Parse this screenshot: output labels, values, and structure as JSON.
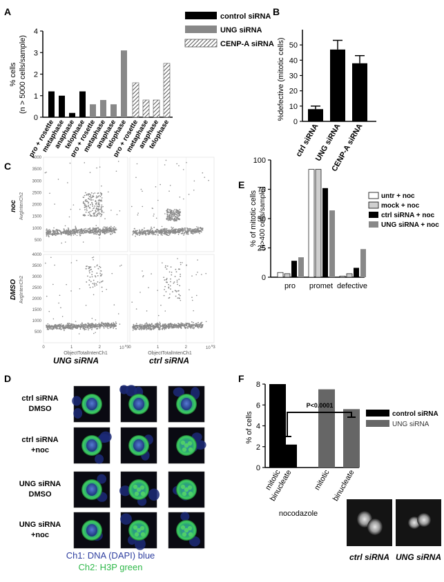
{
  "panels": {
    "A": {
      "letter": "A",
      "ylabel": "% cells",
      "ylabel2": "(n > 5000 cells/sample)",
      "y_ticks": [
        "0",
        "1",
        "2",
        "3",
        "4"
      ],
      "legend": [
        "control siRNA",
        "UNG siRNA",
        "CENP-A siRNA"
      ]
    },
    "B": {
      "letter": "B",
      "ylabel": "%defective (mitotic cells)",
      "y_ticks": [
        "0",
        "10",
        "20",
        "30",
        "40",
        "50"
      ]
    },
    "C": {
      "letter": "C",
      "row_labels": [
        "noc",
        "DMSO"
      ],
      "y_axis_label": "AvgIntenCh2",
      "x_axis_label": "ObjectTotalIntenCh1",
      "y_ticks": [
        "4000",
        "3500",
        "3000",
        "2500",
        "2000",
        "1500",
        "1000",
        "500"
      ],
      "x_ticks": [
        "0",
        "1",
        "2",
        "3"
      ],
      "x_exp": "10",
      "x_exp_sup": "5",
      "col_labels": [
        "UNG siRNA",
        "ctrl siRNA"
      ]
    },
    "D": {
      "letter": "D",
      "row_labels": [
        [
          "ctrl siRNA",
          "DMSO"
        ],
        [
          "ctrl siRNA",
          "+noc"
        ],
        [
          "UNG siRNA",
          "DMSO"
        ],
        [
          "UNG siRNA",
          "+noc"
        ]
      ],
      "caption1": "Ch1: DNA (DAPI) blue",
      "caption2": "Ch2: H3P green"
    },
    "E": {
      "letter": "E",
      "ylabel": "% of mitotic cells",
      "ylabel2": "(n>400 cells/sample)",
      "y_ticks": [
        "0",
        "25",
        "50",
        "75",
        "100"
      ],
      "categories": [
        "pro",
        "promet",
        "defective"
      ],
      "legend": [
        "untr + noc",
        "mock + noc",
        "ctrl siRNA + noc",
        "UNG siRNA + noc"
      ]
    },
    "F": {
      "letter": "F",
      "ylabel": "% of cells",
      "y_ticks": [
        "0",
        "2",
        "4",
        "6",
        "8"
      ],
      "pvalue": "P<0.0001",
      "xnote": "nocodazole",
      "legend": [
        "control siRNA",
        "UNG siRNA"
      ],
      "image_labels": [
        "ctrl siRNA",
        "UNG siRNA"
      ]
    }
  },
  "colors": {
    "control": "#000000",
    "ung": "#888888",
    "cenpa_hatch": "#555555",
    "scatter": "#8a8a8a",
    "untr": "#ffffff",
    "mock": "#cfcfcf",
    "dapi_blue": "#2f3fa0",
    "h3p_green": "#2fb84a"
  },
  "chart_data": [
    {
      "panel": "A",
      "type": "bar",
      "categories": [
        "pro + rosette",
        "metaphase",
        "anaphase",
        "telophase"
      ],
      "series": [
        {
          "name": "control siRNA",
          "values": [
            1.2,
            1.0,
            0.2,
            1.2
          ]
        },
        {
          "name": "UNG siRNA",
          "values": [
            0.6,
            0.8,
            0.6,
            3.1
          ]
        },
        {
          "name": "CENP-A siRNA",
          "values": [
            1.6,
            0.8,
            0.8,
            2.5
          ]
        }
      ],
      "ylabel": "% cells (n > 5000 cells/sample)",
      "ylim": [
        0,
        4
      ],
      "legend": "top-right"
    },
    {
      "panel": "B",
      "type": "bar",
      "categories": [
        "ctrl siRNA",
        "UNG siRNA",
        "CENP-A siRNA"
      ],
      "values": [
        8,
        47,
        38
      ],
      "errors": [
        2,
        6,
        5
      ],
      "ylabel": "%defective (mitotic cells)",
      "ylim": [
        0,
        60
      ]
    },
    {
      "panel": "C",
      "type": "scatter",
      "xlabel": "ObjectTotalIntenCh1",
      "ylabel": "AvgIntenCh2",
      "xlim": [
        0,
        300000
      ],
      "ylim": [
        0,
        4000
      ],
      "subplots": [
        {
          "row": "noc",
          "col": "UNG siRNA",
          "main_band_y": 800,
          "cluster": {
            "x": [
              140000,
              210000
            ],
            "y": [
              1500,
              2500
            ]
          }
        },
        {
          "row": "noc",
          "col": "ctrl siRNA",
          "main_band_y": 800,
          "cluster": {
            "x": [
              130000,
              180000
            ],
            "y": [
              1300,
              1800
            ]
          }
        },
        {
          "row": "DMSO",
          "col": "UNG siRNA",
          "main_band_y": 700,
          "cluster": {
            "x": [
              150000,
              210000
            ],
            "y": [
              2500,
              3500
            ]
          }
        },
        {
          "row": "DMSO",
          "col": "ctrl siRNA",
          "main_band_y": 700,
          "cluster": {
            "x": [
              120000,
              180000
            ],
            "y": [
              2000,
              3500
            ]
          }
        }
      ]
    },
    {
      "panel": "E",
      "type": "bar",
      "categories": [
        "pro",
        "promet",
        "defective"
      ],
      "series": [
        {
          "name": "untr + noc",
          "values": [
            4,
            92,
            1
          ]
        },
        {
          "name": "mock + noc",
          "values": [
            3,
            92,
            3
          ]
        },
        {
          "name": "ctrl siRNA + noc",
          "values": [
            14,
            76,
            8
          ]
        },
        {
          "name": "UNG siRNA + noc",
          "values": [
            17,
            57,
            24
          ]
        }
      ],
      "ylabel": "% of mitotic cells (n>400 cells/sample)",
      "ylim": [
        0,
        100
      ],
      "legend": "right"
    },
    {
      "panel": "F",
      "type": "bar",
      "groups": [
        {
          "name": "control siRNA",
          "categories": [
            "mitotic",
            "binucleate"
          ],
          "values": [
            8.0,
            2.2
          ]
        },
        {
          "name": "UNG siRNA",
          "categories": [
            "mitotic",
            "binucleate"
          ],
          "values": [
            7.5,
            5.6
          ]
        }
      ],
      "ylabel": "% of cells",
      "ylim": [
        0,
        8
      ],
      "annotation": "P<0.0001",
      "legend": "right"
    }
  ]
}
